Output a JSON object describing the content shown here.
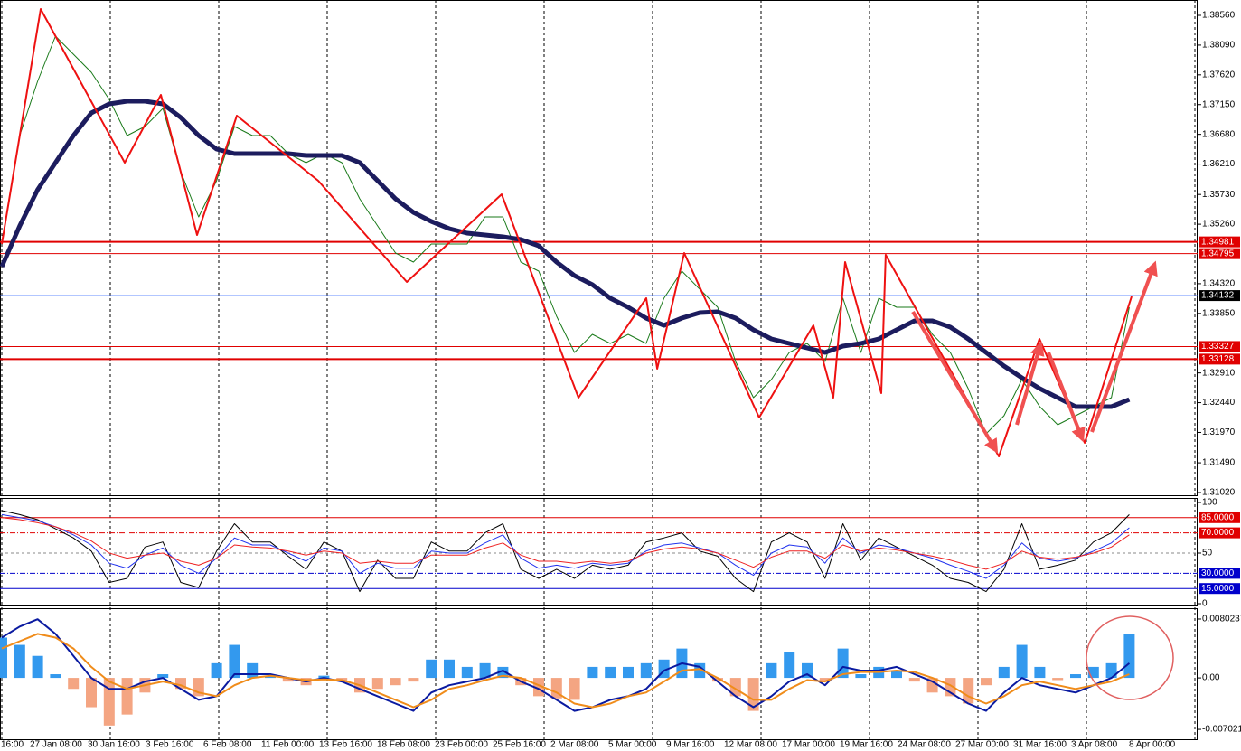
{
  "chart_data": [
    {
      "type": "line",
      "ylim": [
        1.30977,
        1.38803
      ],
      "yticks": [
        {
          "value": 1.3856,
          "label": "1.38560"
        },
        {
          "value": 1.3809,
          "label": "1.38090"
        },
        {
          "value": 1.3762,
          "label": "1.37620"
        },
        {
          "value": 1.3715,
          "label": "1.37150"
        },
        {
          "value": 1.3668,
          "label": "1.36680"
        },
        {
          "value": 1.3621,
          "label": "1.36210"
        },
        {
          "value": 1.3573,
          "label": "1.35730"
        },
        {
          "value": 1.3526,
          "label": "1.35260"
        },
        {
          "value": 1.3432,
          "label": "1.34320"
        },
        {
          "value": 1.3385,
          "label": "1.33850"
        },
        {
          "value": 1.3291,
          "label": "1.32910"
        },
        {
          "value": 1.3244,
          "label": "1.32440"
        },
        {
          "value": 1.3197,
          "label": "1.31970"
        },
        {
          "value": 1.3149,
          "label": "1.31490"
        },
        {
          "value": 1.3102,
          "label": "1.31020"
        }
      ],
      "levels": [
        {
          "value": 1.34981,
          "label": "1.34981",
          "color": "#e00000",
          "width": 2
        },
        {
          "value": 1.34795,
          "label": "1.34795",
          "color": "#e00000",
          "width": 1
        },
        {
          "value": 1.34132,
          "label": "1.34132",
          "color": "#3366ff",
          "box": "#000000",
          "width": 1
        },
        {
          "value": 1.33327,
          "label": "1.33327",
          "color": "#e00000",
          "width": 1
        },
        {
          "value": 1.33128,
          "label": "1.33128",
          "color": "#e00000",
          "width": 2
        }
      ],
      "series": [
        {
          "color": "#1a7a1a",
          "width": 1,
          "values": [
            1.34947,
            1.36661,
            1.37518,
            1.38232,
            1.37946,
            1.3766,
            1.37232,
            1.36661,
            1.36803,
            1.37089,
            1.36089,
            1.35375,
            1.35947,
            1.36803,
            1.36661,
            1.36661,
            1.36375,
            1.36232,
            1.36375,
            1.36232,
            1.35661,
            1.35233,
            1.34804,
            1.34661,
            1.34947,
            1.34947,
            1.34947,
            1.35375,
            1.35375,
            1.34661,
            1.34519,
            1.33804,
            1.33233,
            1.33519,
            1.33376,
            1.33519,
            1.33376,
            1.3409,
            1.34519,
            1.34233,
            1.33947,
            1.3309,
            1.32519,
            1.32805,
            1.33233,
            1.33376,
            1.3309,
            1.3409,
            1.33233,
            1.3409,
            1.33947,
            1.33947,
            1.33519,
            1.33233,
            1.32662,
            1.31948,
            1.32234,
            1.32805,
            1.32376,
            1.32091,
            1.32234,
            1.32376,
            1.32519,
            1.33947
          ]
        },
        {
          "color": "#1c1c5e",
          "width": 5,
          "values": [
            1.3459,
            1.35233,
            1.35804,
            1.36232,
            1.36661,
            1.37018,
            1.37161,
            1.37203,
            1.37203,
            1.37161,
            1.36946,
            1.36661,
            1.36447,
            1.36375,
            1.36375,
            1.36375,
            1.36375,
            1.36347,
            1.36347,
            1.36347,
            1.36232,
            1.35947,
            1.35661,
            1.35447,
            1.35304,
            1.3519,
            1.35118,
            1.3509,
            1.35061,
            1.35018,
            1.34918,
            1.34661,
            1.34447,
            1.34304,
            1.3409,
            1.33947,
            1.33776,
            1.33662,
            1.33776,
            1.33862,
            1.33876,
            1.33776,
            1.3359,
            1.33447,
            1.33376,
            1.33305,
            1.33233,
            1.33333,
            1.33376,
            1.33447,
            1.3359,
            1.33733,
            1.33733,
            1.33633,
            1.33447,
            1.33233,
            1.33019,
            1.32833,
            1.32662,
            1.32519,
            1.32376,
            1.32376,
            1.32376,
            1.3249
          ]
        },
        {
          "color": "#ee1111",
          "width": 2,
          "x": [
            0,
            2.17,
            6.87,
            8.89,
            10.91,
            13.13,
            17.68,
            22.63,
            27.93,
            32.22,
            36.01,
            36.62,
            38.13,
            42.32,
            45.35,
            46.46,
            47.12,
            49.14,
            49.39,
            55.71,
            57.98,
            60.51,
            63.13
          ],
          "values": [
            1.34947,
            1.3866,
            1.36232,
            1.37303,
            1.3509,
            1.36975,
            1.35947,
            1.34347,
            1.35733,
            1.32519,
            1.3409,
            1.32976,
            1.34804,
            1.32205,
            1.33662,
            1.32519,
            1.34661,
            1.32591,
            1.34776,
            1.31591,
            1.33447,
            1.31805,
            1.34119
          ]
        }
      ],
      "x_labels": [
        "16:00",
        "27 Jan 08:00",
        "30 Jan 16:00",
        "3 Feb 16:00",
        "6 Feb 08:00",
        "11 Feb 00:00",
        "13 Feb 16:00",
        "18 Feb 08:00",
        "23 Feb 00:00",
        "25 Feb 16:00",
        "2 Mar 08:00",
        "5 Mar 00:00",
        "9 Mar 16:00",
        "12 Mar 08:00",
        "17 Mar 00:00",
        "19 Mar 16:00",
        "24 Mar 08:00",
        "27 Mar 00:00",
        "31 Mar 16:00",
        "3 Apr 08:00",
        "8 Apr 00:00"
      ]
    },
    {
      "type": "line",
      "ylim": [
        0,
        100
      ],
      "yticks": [
        100,
        50,
        0
      ],
      "levels": [
        {
          "value": 85,
          "label": "85.0000",
          "color": "#e00000",
          "dash": "none"
        },
        {
          "value": 70,
          "label": "70.0000",
          "color": "#e00000",
          "dash": "6 2 1 2"
        },
        {
          "value": 30,
          "label": "30.0000",
          "color": "#0000cc",
          "dash": "6 2 1 2"
        },
        {
          "value": 15,
          "label": "15.0000",
          "color": "#0000cc",
          "dash": "none"
        }
      ],
      "series": [
        {
          "color": "#000000",
          "width": 1,
          "values": [
            92,
            88,
            83,
            74,
            65,
            52,
            21,
            25,
            56,
            61,
            21,
            16,
            52,
            79,
            61,
            61,
            47,
            34,
            61,
            52,
            12,
            43,
            25,
            25,
            61,
            52,
            52,
            70,
            79,
            34,
            25,
            34,
            25,
            38,
            34,
            38,
            61,
            65,
            70,
            52,
            47,
            25,
            12,
            61,
            70,
            61,
            25,
            79,
            43,
            65,
            56,
            47,
            38,
            25,
            21,
            12,
            34,
            79,
            34,
            38,
            43,
            61,
            70,
            88
          ]
        },
        {
          "color": "#2233ee",
          "width": 1,
          "values": [
            88,
            85,
            82,
            76,
            68,
            58,
            40,
            35,
            48,
            55,
            38,
            30,
            45,
            65,
            58,
            58,
            50,
            42,
            55,
            52,
            30,
            40,
            35,
            35,
            52,
            50,
            50,
            60,
            68,
            45,
            35,
            38,
            35,
            40,
            38,
            40,
            52,
            58,
            60,
            55,
            50,
            38,
            28,
            50,
            58,
            56,
            40,
            65,
            50,
            58,
            55,
            50,
            45,
            38,
            32,
            25,
            38,
            60,
            45,
            42,
            45,
            52,
            60,
            75
          ]
        },
        {
          "color": "#ee2222",
          "width": 1,
          "values": [
            85,
            83,
            80,
            76,
            70,
            62,
            50,
            45,
            48,
            50,
            42,
            38,
            45,
            58,
            56,
            55,
            52,
            48,
            52,
            50,
            40,
            42,
            40,
            40,
            48,
            48,
            48,
            55,
            60,
            48,
            42,
            42,
            40,
            42,
            40,
            42,
            50,
            54,
            56,
            54,
            50,
            43,
            36,
            46,
            52,
            52,
            45,
            58,
            52,
            55,
            53,
            50,
            47,
            43,
            38,
            34,
            40,
            52,
            46,
            44,
            46,
            50,
            56,
            68
          ]
        }
      ]
    },
    {
      "type": "bar",
      "ylim": [
        -0.00837,
        0.0095
      ],
      "yticks": [
        0.0080237,
        {
          "value": 0,
          "label": "0.00"
        },
        -0.007021
      ],
      "pos_color": "#3399ee",
      "neg_color": "#f4a582",
      "values": [
        0.0055,
        0.0045,
        0.003,
        0.0005,
        -0.0015,
        -0.004,
        -0.0065,
        -0.005,
        -0.002,
        0.0005,
        -0.0015,
        -0.0025,
        0.002,
        0.0045,
        0.002,
        0.0003,
        -0.0005,
        -0.001,
        0.0003,
        -0.0005,
        -0.002,
        -0.0015,
        -0.001,
        -0.0005,
        0.0025,
        0.0025,
        0.0015,
        0.002,
        0.0015,
        -0.001,
        -0.0025,
        -0.0028,
        -0.003,
        0.0015,
        0.0015,
        0.0015,
        0.002,
        0.0025,
        0.004,
        0.002,
        -0.0005,
        -0.0025,
        -0.0045,
        0.002,
        0.0035,
        0.002,
        -0.0005,
        0.004,
        0.0005,
        0.0015,
        0.001,
        -0.0005,
        -0.002,
        -0.0025,
        -0.0035,
        -0.001,
        0.0015,
        0.0045,
        0.0015,
        -0.0003,
        0.0005,
        0.0015,
        0.002,
        0.006
      ],
      "series": [
        {
          "color": "#0a1aa0",
          "width": 2,
          "values": [
            0.0055,
            0.007,
            0.008,
            0.006,
            0.003,
            0,
            -0.0015,
            -0.0015,
            -0.0005,
            0,
            -0.0015,
            -0.003,
            -0.0025,
            0.0005,
            0.0005,
            0.0005,
            0,
            -0.0005,
            0,
            -0.0005,
            -0.0015,
            -0.0025,
            -0.0035,
            -0.0045,
            -0.002,
            -0.001,
            -0.0005,
            0,
            0.001,
            -0.0005,
            -0.0015,
            -0.003,
            -0.0045,
            -0.004,
            -0.003,
            -0.0025,
            -0.0015,
            0.001,
            0.002,
            0.0015,
            -0.0005,
            -0.0025,
            -0.004,
            -0.0025,
            -0.0005,
            0.0005,
            -0.001,
            0.0015,
            0.001,
            0.001,
            0.0015,
            0.0005,
            -0.0005,
            -0.002,
            -0.0035,
            -0.0045,
            -0.002,
            0,
            -0.001,
            -0.0015,
            -0.002,
            -0.001,
            0,
            0.002
          ]
        },
        {
          "color": "#f08c1a",
          "width": 2,
          "values": [
            0.004,
            0.005,
            0.006,
            0.0055,
            0.004,
            0.0015,
            -0.0005,
            -0.0015,
            -0.001,
            -0.0005,
            -0.001,
            -0.002,
            -0.0025,
            -0.001,
            0,
            0.0003,
            0,
            -0.0003,
            -0.0002,
            -0.0003,
            -0.001,
            -0.002,
            -0.003,
            -0.004,
            -0.003,
            -0.0015,
            -0.001,
            -0.0003,
            0.0003,
            0,
            -0.001,
            -0.002,
            -0.0035,
            -0.004,
            -0.0035,
            -0.0025,
            -0.002,
            -0.0005,
            0.001,
            0.0012,
            0,
            -0.0015,
            -0.003,
            -0.003,
            -0.0015,
            -0.0003,
            -0.0005,
            0.0005,
            0.0008,
            0.0008,
            0.001,
            0.0008,
            0,
            -0.001,
            -0.0025,
            -0.0035,
            -0.0025,
            -0.001,
            -0.0005,
            -0.001,
            -0.0015,
            -0.001,
            -0.0005,
            0.0005
          ]
        }
      ]
    }
  ]
}
